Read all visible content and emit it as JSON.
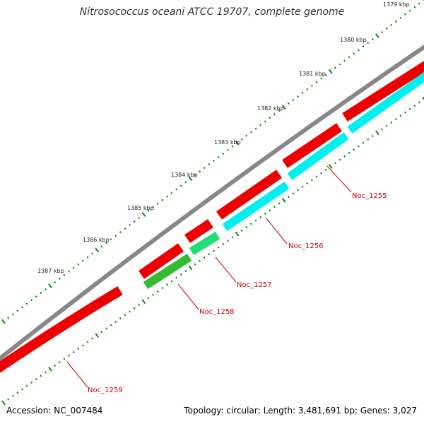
{
  "title": "Nitrosococcus oceani ATCC 19707, complete genome",
  "footer": {
    "accession": "Accession: NC_007484",
    "summary": "Topology: circular; Length: 3,481,691 bp; Genes: 3,027"
  },
  "colors": {
    "backbone": "#888888",
    "forward_gene": "#ee0000",
    "reverse_gene": "#00f0f0",
    "reverse_gene_alt": "#22dd77",
    "reverse_gene_green": "#33bb33",
    "tick": "#118811",
    "label": "#cc0000"
  },
  "kbp_labels": [
    "1379 kbp",
    "1380 kbp",
    "1381 kbp",
    "1382 kbp",
    "1383 kbp",
    "1384 kbp",
    "1385 kbp",
    "1386 kbp",
    "1387 kbp"
  ],
  "gene_labels": [
    "Noc_1255",
    "Noc_1256",
    "Noc_1257",
    "Noc_1258",
    "Noc_1259"
  ]
}
